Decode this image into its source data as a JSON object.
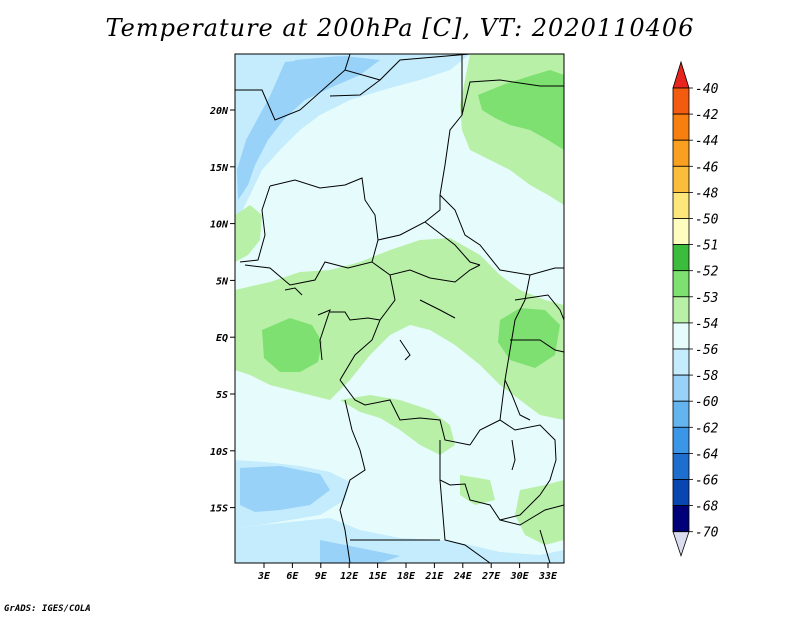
{
  "title": "Temperature at 200hPa [C], VT: 2020110406",
  "credit": "GrADS: IGES/COLA",
  "map": {
    "region": "Central Africa",
    "lat_ticks": [
      "20N",
      "15N",
      "10N",
      "5N",
      "EQ",
      "5S",
      "10S",
      "15S"
    ],
    "lon_ticks": [
      "3E",
      "6E",
      "9E",
      "12E",
      "15E",
      "18E",
      "21E",
      "24E",
      "27E",
      "30E",
      "33E"
    ]
  },
  "colorbar": {
    "labels": [
      "-40",
      "-42",
      "-44",
      "-46",
      "-48",
      "-50",
      "-51",
      "-52",
      "-53",
      "-54",
      "-56",
      "-58",
      "-60",
      "-62",
      "-64",
      "-66",
      "-68",
      "-70"
    ],
    "colors": [
      "#e8241e",
      "#f25b10",
      "#f77f10",
      "#f9a020",
      "#fbbe3c",
      "#fde67a",
      "#fffcc0",
      "#3cbc3c",
      "#7ee070",
      "#b8f0a8",
      "#e6fcfc",
      "#c4ecfc",
      "#98d2f8",
      "#64b4f0",
      "#3c96e8",
      "#1e6ed0",
      "#0a46b0",
      "#000078",
      "#dcdcf0"
    ]
  }
}
